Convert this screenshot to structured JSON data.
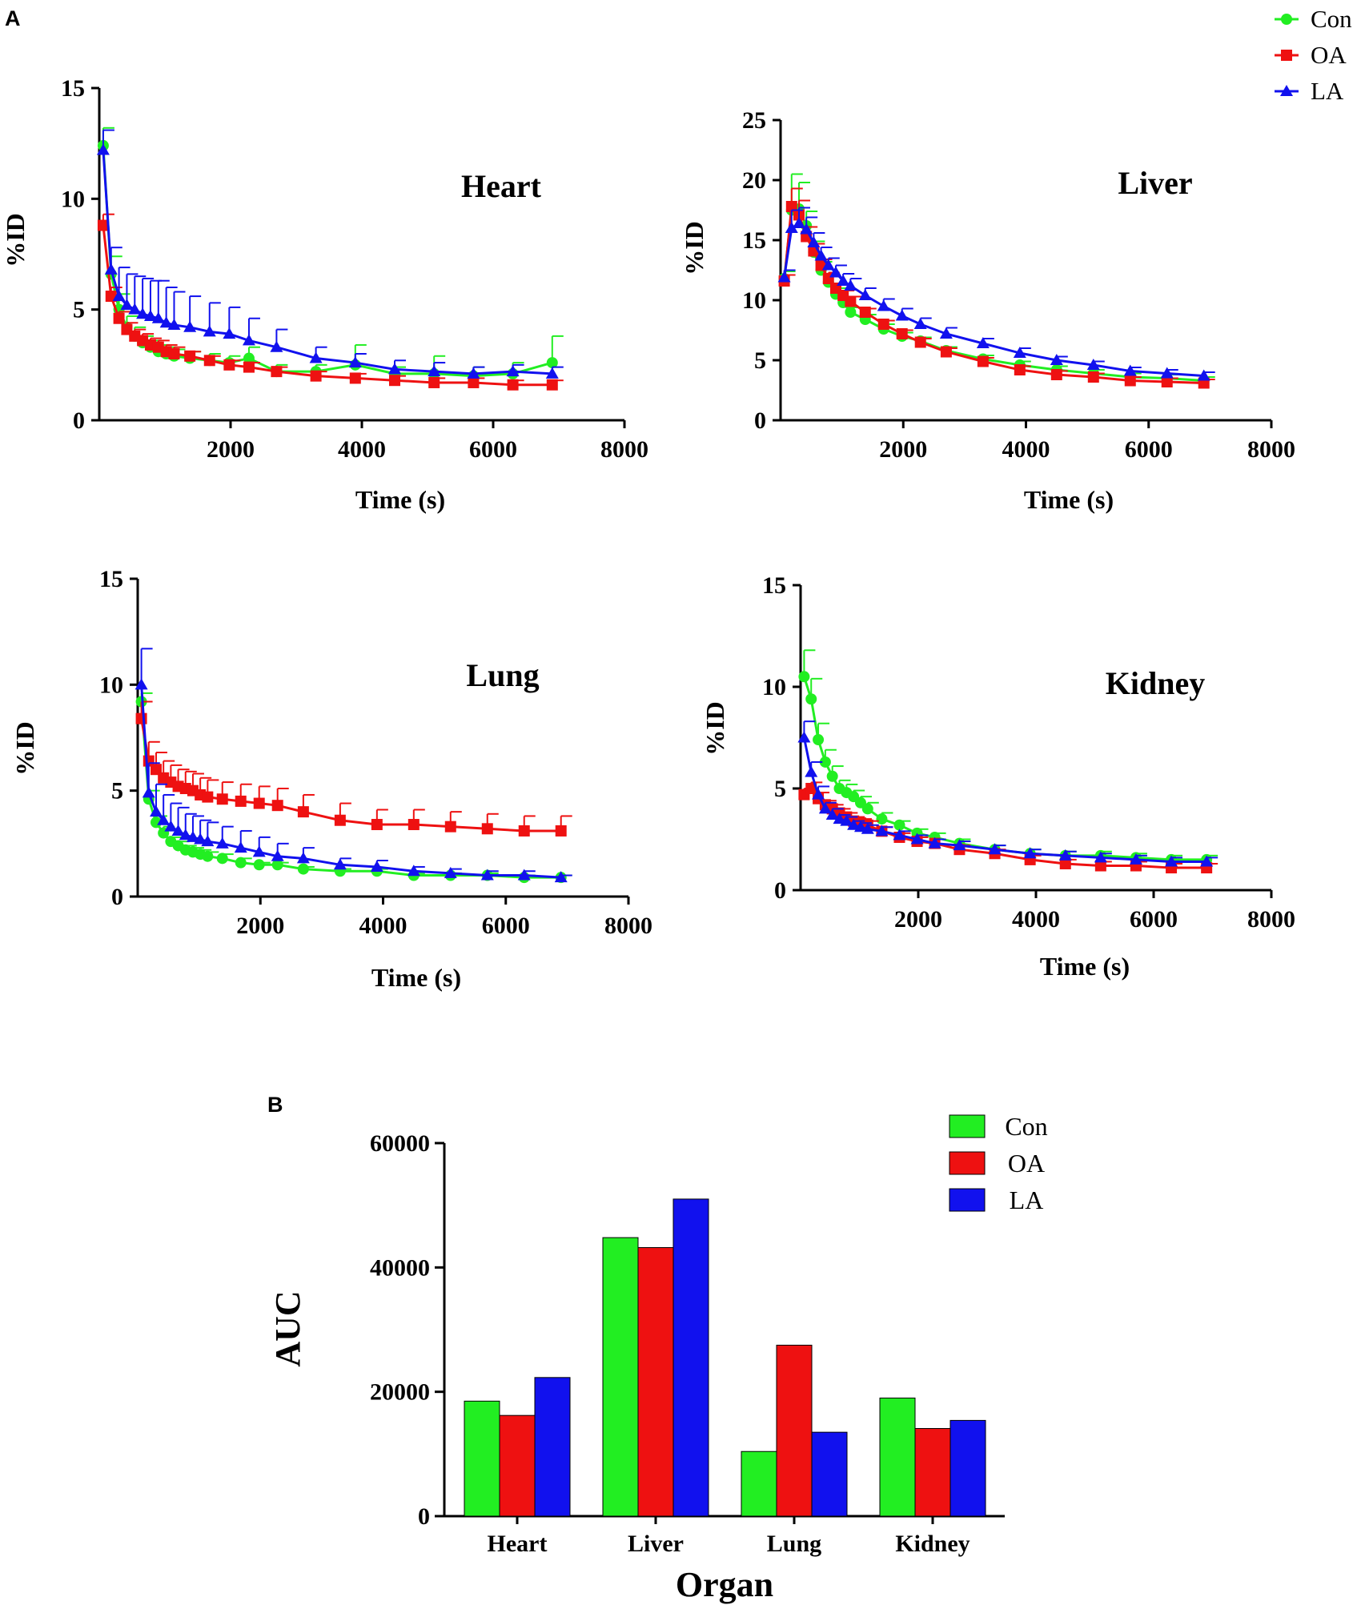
{
  "panels": {
    "a": "A",
    "b": "B"
  },
  "colors": {
    "Con": "#22ee22",
    "OA": "#ee1111",
    "LA": "#1111ee"
  },
  "line_legend": [
    "Con",
    "OA",
    "LA"
  ],
  "chart_data": [
    {
      "type": "line",
      "title": "Heart",
      "xlabel": "Time (s)",
      "ylabel": "%ID",
      "xlim": [
        0,
        8000
      ],
      "ylim": [
        0,
        15
      ],
      "xticks": [
        2000,
        4000,
        6000,
        8000
      ],
      "yticks": [
        0,
        5,
        10,
        15
      ],
      "x": [
        60,
        180,
        300,
        420,
        540,
        660,
        780,
        900,
        1020,
        1140,
        1380,
        1680,
        1980,
        2280,
        2700,
        3300,
        3900,
        4500,
        5100,
        5700,
        6300,
        6900
      ],
      "series": [
        {
          "name": "Con",
          "values": [
            12.4,
            6.6,
            5.0,
            4.2,
            3.8,
            3.5,
            3.3,
            3.1,
            3.0,
            2.9,
            2.8,
            2.7,
            2.6,
            2.8,
            2.2,
            2.2,
            2.5,
            2.1,
            2.1,
            2.0,
            2.1,
            2.6
          ],
          "errors": [
            0.8,
            0.8,
            0.7,
            0.5,
            0.4,
            0.3,
            0.3,
            0.3,
            0.3,
            0.3,
            0.3,
            0.3,
            0.3,
            0.5,
            0.3,
            0.3,
            0.9,
            0.3,
            0.8,
            0.4,
            0.5,
            1.2
          ]
        },
        {
          "name": "OA",
          "values": [
            8.8,
            5.6,
            4.6,
            4.1,
            3.8,
            3.6,
            3.4,
            3.3,
            3.1,
            3.0,
            2.9,
            2.7,
            2.5,
            2.4,
            2.2,
            2.0,
            1.9,
            1.8,
            1.7,
            1.7,
            1.6,
            1.6
          ],
          "errors": [
            0.5,
            0.4,
            0.3,
            0.3,
            0.3,
            0.3,
            0.3,
            0.3,
            0.3,
            0.3,
            0.2,
            0.2,
            0.2,
            0.2,
            0.2,
            0.2,
            0.2,
            0.2,
            0.2,
            0.2,
            0.2,
            0.2
          ]
        },
        {
          "name": "LA",
          "values": [
            12.2,
            6.8,
            5.6,
            5.2,
            5.0,
            4.8,
            4.7,
            4.6,
            4.4,
            4.3,
            4.2,
            4.0,
            3.9,
            3.6,
            3.3,
            2.8,
            2.6,
            2.3,
            2.2,
            2.1,
            2.2,
            2.1
          ],
          "errors": [
            0.9,
            1.0,
            1.3,
            1.4,
            1.5,
            1.6,
            1.6,
            1.7,
            1.6,
            1.5,
            1.4,
            1.3,
            1.2,
            1.0,
            0.8,
            0.5,
            0.4,
            0.4,
            0.4,
            0.3,
            0.3,
            0.3
          ]
        }
      ]
    },
    {
      "type": "line",
      "title": "Liver",
      "xlabel": "Time (s)",
      "ylabel": "%ID",
      "xlim": [
        0,
        8000
      ],
      "ylim": [
        0,
        25
      ],
      "xticks": [
        2000,
        4000,
        6000,
        8000
      ],
      "yticks": [
        0,
        5,
        10,
        15,
        20,
        25
      ],
      "x": [
        60,
        180,
        300,
        420,
        540,
        660,
        780,
        900,
        1020,
        1140,
        1380,
        1680,
        1980,
        2280,
        2700,
        3300,
        3900,
        4500,
        5100,
        5700,
        6300,
        6900
      ],
      "series": [
        {
          "name": "Con",
          "values": [
            11.8,
            17.5,
            17.6,
            16.2,
            14.0,
            12.5,
            11.5,
            10.5,
            9.8,
            9.0,
            8.4,
            7.6,
            7.0,
            6.6,
            5.8,
            5.1,
            4.6,
            4.2,
            3.9,
            3.6,
            3.5,
            3.3
          ],
          "errors": [
            0.6,
            3.0,
            2.2,
            1.2,
            0.9,
            0.7,
            0.6,
            0.5,
            0.5,
            0.4,
            0.4,
            0.4,
            0.3,
            0.3,
            0.3,
            0.3,
            0.3,
            0.3,
            0.3,
            0.3,
            0.3,
            0.3
          ]
        },
        {
          "name": "OA",
          "values": [
            11.6,
            17.8,
            17.1,
            15.3,
            14.1,
            12.9,
            11.8,
            11.0,
            10.4,
            9.9,
            9.0,
            8.0,
            7.2,
            6.5,
            5.7,
            4.9,
            4.2,
            3.8,
            3.6,
            3.3,
            3.2,
            3.1
          ],
          "errors": [
            0.5,
            1.5,
            1.2,
            0.8,
            0.6,
            0.5,
            0.5,
            0.4,
            0.4,
            0.4,
            0.3,
            0.3,
            0.3,
            0.3,
            0.3,
            0.3,
            0.3,
            0.3,
            0.3,
            0.3,
            0.3,
            0.3
          ]
        },
        {
          "name": "LA",
          "values": [
            11.9,
            16.0,
            16.4,
            15.9,
            14.8,
            13.7,
            12.9,
            12.3,
            11.6,
            11.2,
            10.4,
            9.5,
            8.7,
            8.0,
            7.2,
            6.4,
            5.6,
            5.0,
            4.6,
            4.1,
            3.9,
            3.7
          ],
          "errors": [
            0.6,
            1.5,
            1.3,
            1.0,
            0.8,
            0.7,
            0.6,
            0.6,
            0.6,
            0.6,
            0.6,
            0.6,
            0.6,
            0.5,
            0.5,
            0.4,
            0.4,
            0.3,
            0.3,
            0.3,
            0.3,
            0.3
          ]
        }
      ]
    },
    {
      "type": "line",
      "title": "Lung",
      "xlabel": "Time (s)",
      "ylabel": "%ID",
      "xlim": [
        0,
        8000
      ],
      "ylim": [
        0,
        15
      ],
      "xticks": [
        2000,
        4000,
        6000,
        8000
      ],
      "yticks": [
        0,
        5,
        10,
        15
      ],
      "x": [
        60,
        180,
        300,
        420,
        540,
        660,
        780,
        900,
        1020,
        1140,
        1380,
        1680,
        1980,
        2280,
        2700,
        3300,
        3900,
        4500,
        5100,
        5700,
        6300,
        6900
      ],
      "series": [
        {
          "name": "Con",
          "values": [
            9.2,
            4.6,
            3.5,
            3.0,
            2.6,
            2.4,
            2.2,
            2.1,
            2.0,
            1.9,
            1.8,
            1.6,
            1.5,
            1.5,
            1.3,
            1.2,
            1.2,
            1.0,
            1.0,
            1.0,
            0.9,
            0.9
          ],
          "errors": [
            0.4,
            0.4,
            0.3,
            0.3,
            0.2,
            0.2,
            0.2,
            0.2,
            0.2,
            0.2,
            0.2,
            0.2,
            0.1,
            0.1,
            0.1,
            0.1,
            0.1,
            0.1,
            0.1,
            0.1,
            0.1,
            0.1
          ]
        },
        {
          "name": "OA",
          "values": [
            8.4,
            6.4,
            6.0,
            5.6,
            5.4,
            5.2,
            5.1,
            5.0,
            4.8,
            4.7,
            4.6,
            4.5,
            4.4,
            4.3,
            4.0,
            3.6,
            3.4,
            3.4,
            3.3,
            3.2,
            3.1,
            3.1
          ],
          "errors": [
            0.8,
            0.9,
            0.8,
            0.8,
            0.8,
            0.8,
            0.8,
            0.8,
            0.8,
            0.8,
            0.8,
            0.8,
            0.8,
            0.8,
            0.8,
            0.8,
            0.7,
            0.7,
            0.7,
            0.7,
            0.7,
            0.7
          ]
        },
        {
          "name": "LA",
          "values": [
            10.0,
            4.9,
            4.0,
            3.6,
            3.3,
            3.1,
            2.9,
            2.8,
            2.7,
            2.6,
            2.5,
            2.3,
            2.1,
            1.9,
            1.8,
            1.5,
            1.4,
            1.2,
            1.1,
            1.0,
            1.0,
            0.9
          ],
          "errors": [
            1.7,
            1.4,
            1.3,
            1.2,
            1.1,
            1.1,
            1.0,
            1.0,
            0.9,
            0.9,
            0.8,
            0.8,
            0.7,
            0.6,
            0.5,
            0.3,
            0.3,
            0.2,
            0.2,
            0.2,
            0.2,
            0.1
          ]
        }
      ]
    },
    {
      "type": "line",
      "title": "Kidney",
      "xlabel": "Time (s)",
      "ylabel": "%ID",
      "xlim": [
        0,
        8000
      ],
      "ylim": [
        0,
        15
      ],
      "xticks": [
        2000,
        4000,
        6000,
        8000
      ],
      "yticks": [
        0,
        5,
        10,
        15
      ],
      "x": [
        60,
        180,
        300,
        420,
        540,
        660,
        780,
        900,
        1020,
        1140,
        1380,
        1680,
        1980,
        2280,
        2700,
        3300,
        3900,
        4500,
        5100,
        5700,
        6300,
        6900
      ],
      "series": [
        {
          "name": "Con",
          "values": [
            10.5,
            9.4,
            7.4,
            6.3,
            5.6,
            5.0,
            4.8,
            4.6,
            4.3,
            4.0,
            3.5,
            3.2,
            2.8,
            2.6,
            2.3,
            2.0,
            1.8,
            1.7,
            1.7,
            1.6,
            1.5,
            1.5
          ],
          "errors": [
            1.3,
            1.0,
            0.8,
            0.6,
            0.5,
            0.4,
            0.4,
            0.3,
            0.3,
            0.3,
            0.3,
            0.2,
            0.2,
            0.2,
            0.2,
            0.2,
            0.2,
            0.2,
            0.2,
            0.2,
            0.2,
            0.2
          ]
        },
        {
          "name": "OA",
          "values": [
            4.7,
            5.0,
            4.5,
            4.2,
            4.0,
            3.8,
            3.6,
            3.4,
            3.3,
            3.2,
            2.9,
            2.6,
            2.4,
            2.3,
            2.0,
            1.8,
            1.5,
            1.3,
            1.2,
            1.2,
            1.1,
            1.1
          ],
          "errors": [
            0.3,
            0.3,
            0.3,
            0.2,
            0.2,
            0.2,
            0.2,
            0.2,
            0.2,
            0.2,
            0.2,
            0.2,
            0.2,
            0.2,
            0.2,
            0.2,
            0.2,
            0.2,
            0.2,
            0.2,
            0.2,
            0.2
          ]
        },
        {
          "name": "LA",
          "values": [
            7.5,
            5.8,
            4.7,
            4.0,
            3.7,
            3.5,
            3.4,
            3.2,
            3.1,
            3.0,
            2.9,
            2.7,
            2.5,
            2.3,
            2.2,
            2.0,
            1.8,
            1.7,
            1.6,
            1.5,
            1.4,
            1.4
          ],
          "errors": [
            0.8,
            0.5,
            0.4,
            0.3,
            0.3,
            0.2,
            0.2,
            0.2,
            0.2,
            0.2,
            0.2,
            0.2,
            0.2,
            0.2,
            0.2,
            0.2,
            0.2,
            0.2,
            0.2,
            0.2,
            0.2,
            0.2
          ]
        }
      ]
    },
    {
      "type": "bar",
      "title": "",
      "xlabel": "Organ",
      "ylabel": "AUC",
      "ylim": [
        0,
        60000
      ],
      "yticks": [
        0,
        20000,
        40000,
        60000
      ],
      "categories": [
        "Heart",
        "Liver",
        "Lung",
        "Kidney"
      ],
      "series": [
        {
          "name": "Con",
          "values": [
            18500,
            44800,
            10400,
            19000
          ]
        },
        {
          "name": "OA",
          "values": [
            16200,
            43200,
            27500,
            14100
          ]
        },
        {
          "name": "LA",
          "values": [
            22300,
            51000,
            13500,
            15400
          ]
        }
      ],
      "legend": [
        "Con",
        "OA",
        "LA"
      ]
    }
  ]
}
